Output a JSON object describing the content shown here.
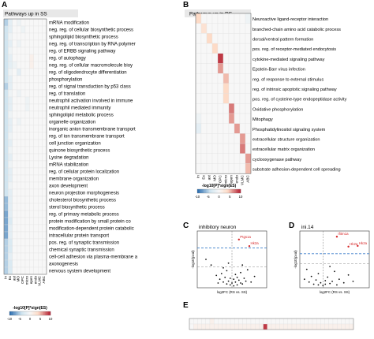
{
  "panels": {
    "a": {
      "letter": "A",
      "title": "Pathways up in SS"
    },
    "b": {
      "letter": "B",
      "title": "Pathways up in RS"
    },
    "c": {
      "letter": "C",
      "title": "inhibitory neuron"
    },
    "d": {
      "letter": "D",
      "title": "ini.14"
    },
    "e": {
      "letter": "E"
    }
  },
  "legend_a": {
    "title": "-log10[P]*sign(ES)",
    "ticks": [
      "-10",
      "-5",
      "0",
      "5",
      "10"
    ]
  },
  "legend_b": {
    "title": "-log10[P]*sign(ES)",
    "ticks": [
      "-10",
      "-5",
      "0",
      "5",
      "10"
    ]
  },
  "colors": {
    "neg_strong": "#2166ac",
    "neg_light": "#d1e5f0",
    "zero": "#f7f7f7",
    "pos_light": "#fddbc7",
    "pos_strong": "#b2182b",
    "grid": "#e0e0e0",
    "point": "#111111",
    "highlight": "#d62728",
    "cutoff_line": "#3a7dc9"
  },
  "chart_data": [
    {
      "type": "heatmap",
      "panel": "A",
      "title": "Pathways up in SS",
      "columns": [
        "In",
        "Ex",
        "ast",
        "MO",
        "OPC",
        "micro",
        "epen",
        "endo",
        "VLMC",
        "ABC"
      ],
      "rows": [
        "mRNA modification",
        "neg. reg. of cellular biosynthetic process",
        "sphingolipid biosynthetic process",
        "neg. reg. of transcription by RNA polymer",
        "reg. of ERBB signaling pathway",
        "reg. of autophagy",
        "neg. reg. of cellular macromolecule bioy",
        "reg. of oligodendrocyte differentiation",
        "phosphorylation",
        "reg. of signal transduction by p53 class",
        "reg. of translation",
        "neutrophil activation involved in immune",
        "neutrophil mediated immunity",
        "sphingolipid metabolic process",
        "organelle organization",
        "inorganic anion transmembrane transport",
        "reg. of ion transmembrane transport",
        "cell junction organization",
        "quinone biosynthetic process",
        "Lysine degradation",
        "mRNA stabilization",
        "reg. of cellular protein localization",
        "membrane organization",
        "axon development",
        "neuron projection morphogenesis",
        "cholesterol biosynthetic process",
        "sterol biosynthetic process",
        "reg. of primary metabolic process",
        "protein modification by small protein co",
        "modification-dependent protein catabolic",
        "intracellular protein transport",
        "pos. reg. of synaptic transmission",
        "chemical synaptic transmission",
        "cell-cell adhesion via plasma-membrane a",
        "axonogenesis",
        "nervous system development"
      ],
      "values": [
        [
          -5,
          -2,
          0,
          -1,
          0,
          0,
          0,
          0,
          0,
          0
        ],
        [
          -4,
          -2,
          0,
          0,
          -1,
          0,
          0,
          0,
          0,
          0
        ],
        [
          -4,
          -1,
          0,
          0,
          0,
          0,
          0,
          0,
          0,
          0
        ],
        [
          -4,
          -2,
          0,
          -1,
          0,
          0,
          0,
          0,
          0,
          0
        ],
        [
          -4,
          -1,
          0,
          0,
          0,
          0,
          0,
          0,
          0,
          0
        ],
        [
          -4,
          -2,
          0,
          0,
          0,
          0,
          1,
          0,
          0,
          0
        ],
        [
          -4,
          -2,
          -1,
          0,
          0,
          0,
          1,
          0,
          0,
          0
        ],
        [
          -4,
          -1,
          0,
          -2,
          0,
          0,
          0,
          0,
          0,
          0
        ],
        [
          -4,
          -2,
          0,
          0,
          0,
          0,
          0,
          0,
          0,
          0
        ],
        [
          -5,
          -2,
          0,
          0,
          0,
          0,
          0,
          0,
          0,
          0
        ],
        [
          -4,
          -1,
          0,
          -1,
          0,
          0,
          0,
          0,
          0,
          0
        ],
        [
          -4,
          -2,
          0,
          0,
          0,
          -1,
          0,
          0,
          0,
          0
        ],
        [
          -4,
          -2,
          0,
          0,
          0,
          -1,
          0,
          0,
          0,
          0
        ],
        [
          -4,
          -1,
          0,
          0,
          0,
          0,
          0,
          0,
          0,
          0
        ],
        [
          -4,
          -2,
          0,
          -1,
          0,
          0,
          0,
          0,
          0,
          0
        ],
        [
          -4,
          -2,
          0,
          0,
          0,
          0,
          0,
          0,
          0,
          0
        ],
        [
          -4,
          -1,
          0,
          0,
          0,
          0,
          0,
          0,
          0,
          0
        ],
        [
          -4,
          -2,
          0,
          0,
          0,
          0,
          0,
          0,
          0,
          0
        ],
        [
          -4,
          -1,
          0,
          0,
          0,
          0,
          0,
          0,
          0,
          0
        ],
        [
          -4,
          -2,
          0,
          0,
          0,
          0,
          0,
          0,
          0,
          0
        ],
        [
          -4,
          -1,
          0,
          0,
          0,
          0,
          0,
          0,
          0,
          0
        ],
        [
          -4,
          -2,
          0,
          0,
          0,
          0,
          0,
          0,
          0,
          0
        ],
        [
          -4,
          -2,
          0,
          0,
          0,
          0,
          0,
          0,
          0,
          0
        ],
        [
          -4,
          -1,
          0,
          0,
          0,
          0,
          0,
          0,
          0,
          0
        ],
        [
          -4,
          -2,
          0,
          0,
          0,
          0,
          0,
          0,
          0,
          0
        ],
        [
          -6,
          -2,
          0,
          0,
          0,
          0,
          0,
          0,
          0,
          0
        ],
        [
          -6,
          -2,
          0,
          0,
          0,
          0,
          0,
          0,
          0,
          0
        ],
        [
          -7,
          -2,
          0,
          0,
          0,
          0,
          0,
          0,
          0,
          0
        ],
        [
          -7,
          -3,
          0,
          0,
          0,
          0,
          0,
          0,
          0,
          0
        ],
        [
          -7,
          -2,
          0,
          0,
          0,
          0,
          0,
          0,
          0,
          0
        ],
        [
          -7,
          -2,
          0,
          0,
          0,
          0,
          0,
          0,
          0,
          0
        ],
        [
          -5,
          -3,
          0,
          0,
          0,
          0,
          0,
          0,
          0,
          0
        ],
        [
          -5,
          -3,
          0,
          0,
          0,
          0,
          0,
          0,
          0,
          0
        ],
        [
          -5,
          -2,
          0,
          0,
          0,
          0,
          0,
          0,
          0,
          0
        ],
        [
          -5,
          -3,
          0,
          0,
          0,
          0,
          0,
          0,
          0,
          0
        ],
        [
          -5,
          -3,
          0,
          0,
          0,
          0,
          0,
          0,
          0,
          0
        ]
      ],
      "range": [
        -10,
        10
      ]
    },
    {
      "type": "heatmap",
      "panel": "B",
      "title": "Pathways up in RS",
      "columns": [
        "In",
        "Ex",
        "ast",
        "MO",
        "OPC",
        "micro",
        "epen",
        "endo",
        "VLMC",
        "ABC"
      ],
      "rows": [
        "Neuroactive ligand-receptor interaction",
        "branched-chain amino acid catabolic process",
        "dorsal/ventral pattern formation",
        "pos. reg. of receptor-mediated endocytosis",
        "cytokine-mediated signaling pathway",
        "Epstein-Barr virus infection",
        "reg. of response to external stimulus",
        "reg. of intrinsic apoptotic signaling pathway",
        "pos. reg. of cysteine-type endopeptidase activity",
        "Oxidative phosphorylation",
        "Mitophagy",
        "Phosphatidylinositol signaling system",
        "extracellular structure organization",
        "extracellular matrix organization",
        "cyclooxygenase pathway",
        "substrate adhesion-dependent cell spreading"
      ],
      "values": [
        [
          4,
          0,
          0,
          0,
          0,
          0,
          0,
          0,
          0,
          -1
        ],
        [
          0,
          3,
          0,
          0,
          0,
          0,
          0,
          0,
          0,
          0
        ],
        [
          0,
          0,
          4,
          0,
          0,
          0,
          0,
          0,
          0,
          0
        ],
        [
          0,
          0,
          0,
          4,
          0,
          0,
          0,
          0,
          0,
          0
        ],
        [
          0,
          0,
          0,
          0,
          9,
          0,
          0,
          0,
          0,
          0
        ],
        [
          0,
          0,
          0,
          0,
          6,
          0,
          0,
          0,
          0,
          0
        ],
        [
          0,
          0,
          0,
          0,
          0,
          5,
          0,
          0,
          0,
          0
        ],
        [
          0,
          0,
          0,
          0,
          0,
          4,
          0,
          0,
          0,
          0
        ],
        [
          0,
          0,
          0,
          0,
          0,
          4,
          0,
          0,
          0,
          0
        ],
        [
          0,
          0,
          0,
          0,
          0,
          0,
          7,
          0,
          0,
          0
        ],
        [
          -1,
          0,
          0,
          0,
          0,
          0,
          6,
          0,
          0,
          0
        ],
        [
          -2,
          0,
          0,
          0,
          0,
          0,
          0,
          6,
          0,
          0
        ],
        [
          0,
          0,
          0,
          0,
          0,
          0,
          0,
          0,
          6,
          0
        ],
        [
          0,
          0,
          0,
          0,
          0,
          0,
          0,
          0,
          7,
          0
        ],
        [
          0,
          0,
          0,
          0,
          0,
          0,
          0,
          0,
          0,
          6
        ],
        [
          0,
          0,
          0,
          0,
          0,
          0,
          0,
          0,
          0,
          5
        ]
      ],
      "range": [
        -10,
        10
      ]
    },
    {
      "type": "scatter",
      "panel": "C",
      "title": "inhibitory neuron",
      "xlabel": "log2FC (RS vs. SS)",
      "ylabel": "-log10(pval)",
      "xlim": [
        -2,
        2
      ],
      "ylim": [
        0,
        6
      ],
      "hline_values": [
        4.2,
        2.2
      ],
      "vline_value": 0,
      "highlighted": [
        {
          "label": "Ptgs1a",
          "x": 0.4,
          "y": 5.1
        },
        {
          "label": "Hk2a",
          "x": 1.0,
          "y": 4.4
        }
      ],
      "points": [
        {
          "x": -1.5,
          "y": 3.0
        },
        {
          "x": -1.2,
          "y": 2.4
        },
        {
          "x": -0.9,
          "y": 1.3
        },
        {
          "x": -0.7,
          "y": 0.9
        },
        {
          "x": -0.6,
          "y": 1.5
        },
        {
          "x": -0.5,
          "y": 0.6
        },
        {
          "x": -0.4,
          "y": 1.1
        },
        {
          "x": -0.3,
          "y": 0.4
        },
        {
          "x": -0.3,
          "y": 1.8
        },
        {
          "x": -0.2,
          "y": 0.7
        },
        {
          "x": -0.1,
          "y": 0.3
        },
        {
          "x": -0.1,
          "y": 1.0
        },
        {
          "x": 0.0,
          "y": 0.5
        },
        {
          "x": 0.1,
          "y": 0.9
        },
        {
          "x": 0.1,
          "y": 0.2
        },
        {
          "x": 0.2,
          "y": 1.4
        },
        {
          "x": 0.2,
          "y": 0.6
        },
        {
          "x": 0.3,
          "y": 0.3
        },
        {
          "x": 0.3,
          "y": 1.1
        },
        {
          "x": 0.4,
          "y": 0.8
        },
        {
          "x": 0.5,
          "y": 0.5
        },
        {
          "x": 0.5,
          "y": 1.6
        },
        {
          "x": 0.6,
          "y": 0.4
        },
        {
          "x": 0.7,
          "y": 1.0
        },
        {
          "x": 0.8,
          "y": 0.7
        },
        {
          "x": 0.9,
          "y": 1.9
        },
        {
          "x": 1.1,
          "y": 0.6
        },
        {
          "x": 1.3,
          "y": 1.2
        },
        {
          "x": -0.8,
          "y": 0.5
        },
        {
          "x": -0.5,
          "y": 2.1
        },
        {
          "x": 0.6,
          "y": 2.4
        },
        {
          "x": -0.2,
          "y": 2.6
        }
      ]
    },
    {
      "type": "scatter",
      "panel": "D",
      "title": "ini.14",
      "xlabel": "log2FC (RS vs. SS)",
      "ylabel": "-log10(pval)",
      "xlim": [
        -1,
        2
      ],
      "ylim": [
        0,
        8
      ],
      "hline_values": [
        4.8,
        3.4
      ],
      "vline_value": 0,
      "highlighted": [
        {
          "label": "Ifitm1a",
          "x": 0.6,
          "y": 7.2
        },
        {
          "label": "Hk2a",
          "x": 1.1,
          "y": 5.8
        },
        {
          "label": "Hk2a",
          "x": 1.5,
          "y": 5.9
        }
      ],
      "points": [
        {
          "x": -0.8,
          "y": 1.2
        },
        {
          "x": -0.6,
          "y": 0.8
        },
        {
          "x": -0.5,
          "y": 1.6
        },
        {
          "x": -0.4,
          "y": 0.5
        },
        {
          "x": -0.3,
          "y": 1.1
        },
        {
          "x": -0.2,
          "y": 0.4
        },
        {
          "x": -0.2,
          "y": 2.0
        },
        {
          "x": -0.1,
          "y": 0.7
        },
        {
          "x": 0.0,
          "y": 0.3
        },
        {
          "x": 0.1,
          "y": 1.0
        },
        {
          "x": 0.1,
          "y": 0.5
        },
        {
          "x": 0.2,
          "y": 1.5
        },
        {
          "x": 0.3,
          "y": 0.6
        },
        {
          "x": 0.4,
          "y": 0.9
        },
        {
          "x": 0.5,
          "y": 2.3
        },
        {
          "x": 0.6,
          "y": 0.4
        },
        {
          "x": 0.7,
          "y": 1.2
        },
        {
          "x": 0.9,
          "y": 0.7
        },
        {
          "x": 1.1,
          "y": 1.8
        },
        {
          "x": 1.3,
          "y": 0.9
        },
        {
          "x": -0.7,
          "y": 2.6
        },
        {
          "x": 0.3,
          "y": 3.0
        }
      ]
    },
    {
      "type": "heatmap",
      "panel": "E",
      "rows": 2,
      "columns": 40,
      "values": [
        [
          0,
          0,
          0,
          0,
          0,
          1,
          0,
          0,
          0,
          0,
          0,
          0,
          0,
          0,
          0,
          0,
          0,
          0,
          0,
          0,
          0,
          0,
          0,
          0,
          0,
          0,
          0,
          0,
          0,
          0,
          0,
          0,
          0,
          0,
          0,
          0,
          0,
          0,
          0,
          0
        ],
        [
          0,
          1,
          1,
          1,
          1,
          1,
          1,
          1,
          1,
          1,
          1,
          1,
          1,
          1,
          1,
          1,
          1,
          1,
          9,
          1,
          1,
          1,
          1,
          1,
          1,
          1,
          1,
          1,
          1,
          1,
          1,
          1,
          1,
          1,
          1,
          1,
          1,
          1,
          1,
          1
        ]
      ],
      "range": [
        -10,
        10
      ]
    }
  ]
}
